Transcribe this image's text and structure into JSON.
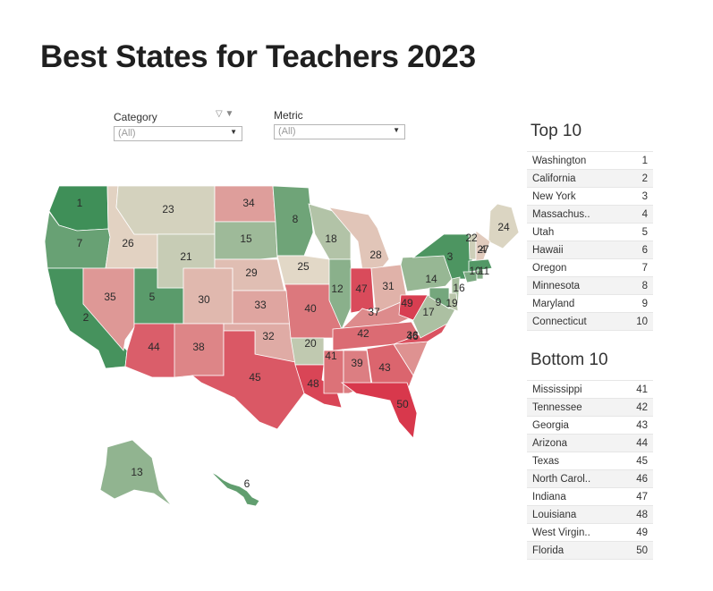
{
  "title": "Best States for Teachers 2023",
  "filters": {
    "category_label": "Category",
    "category_value": "(All)",
    "metric_label": "Metric",
    "metric_value": "(All)"
  },
  "top10": {
    "title": "Top 10",
    "rows": [
      {
        "state": "Washington",
        "rank": "1"
      },
      {
        "state": "California",
        "rank": "2"
      },
      {
        "state": "New York",
        "rank": "3"
      },
      {
        "state": "Massachus..",
        "rank": "4"
      },
      {
        "state": "Utah",
        "rank": "5"
      },
      {
        "state": "Hawaii",
        "rank": "6"
      },
      {
        "state": "Oregon",
        "rank": "7"
      },
      {
        "state": "Minnesota",
        "rank": "8"
      },
      {
        "state": "Maryland",
        "rank": "9"
      },
      {
        "state": "Connecticut",
        "rank": "10"
      }
    ]
  },
  "bottom10": {
    "title": "Bottom 10",
    "rows": [
      {
        "state": "Mississippi",
        "rank": "41"
      },
      {
        "state": "Tennessee",
        "rank": "42"
      },
      {
        "state": "Georgia",
        "rank": "43"
      },
      {
        "state": "Arizona",
        "rank": "44"
      },
      {
        "state": "Texas",
        "rank": "45"
      },
      {
        "state": "North Carol..",
        "rank": "46"
      },
      {
        "state": "Indiana",
        "rank": "47"
      },
      {
        "state": "Louisiana",
        "rank": "48"
      },
      {
        "state": "West Virgin..",
        "rank": "49"
      },
      {
        "state": "Florida",
        "rank": "50"
      }
    ]
  },
  "map": {
    "color_scale": {
      "best": "#3f8f58",
      "mid": "#e2d8c7",
      "worst": "#d8384c"
    },
    "ranks": {
      "WA": "1",
      "OR": "7",
      "CA": "2",
      "ID": "26",
      "NV": "35",
      "UT": "5",
      "AZ": "44",
      "MT": "23",
      "WY": "21",
      "CO": "30",
      "NM": "38",
      "ND": "34",
      "SD": "15",
      "NE": "29",
      "KS": "33",
      "OK": "32",
      "TX": "45",
      "MN": "8",
      "IA": "25",
      "MO": "40",
      "AR": "20",
      "LA": "48",
      "WI": "18",
      "IL": "12",
      "MI": "28",
      "IN": "47",
      "OH": "31",
      "KY": "37",
      "TN": "42",
      "MS": "41",
      "AL": "39",
      "GA": "43",
      "FL": "50",
      "SC": "36",
      "NC": "46",
      "VA": "17",
      "WV": "49",
      "PA": "14",
      "NY": "3",
      "NJ": "16",
      "DE": "19",
      "ME": "24",
      "VT": "22",
      "NH": "27",
      "MA": "4",
      "CT": "10",
      "RI": "11",
      "MD": "9",
      "AK": "13",
      "HI": "6"
    }
  }
}
